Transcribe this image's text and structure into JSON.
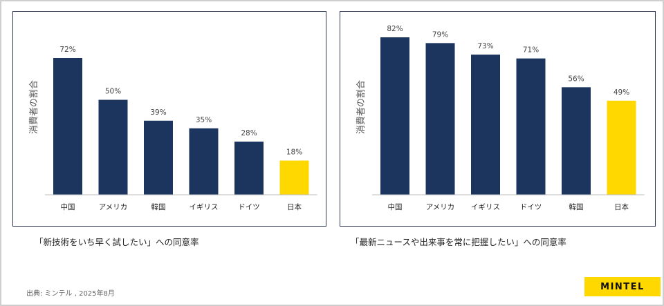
{
  "chart_data": [
    {
      "type": "bar",
      "ylabel": "消費者の割合",
      "categories": [
        "中国",
        "アメリカ",
        "韓国",
        "イギリス",
        "ドイツ",
        "日本"
      ],
      "values": [
        72,
        50,
        39,
        35,
        28,
        18
      ],
      "value_labels": [
        "72%",
        "50%",
        "39%",
        "35%",
        "28%",
        "18%"
      ],
      "ylim": [
        0,
        100
      ],
      "grid": false,
      "colors": [
        "#1c355e",
        "#1c355e",
        "#1c355e",
        "#1c355e",
        "#1c355e",
        "#ffd800"
      ]
    },
    {
      "type": "bar",
      "ylabel": "消費者の割合",
      "categories": [
        "中国",
        "アメリカ",
        "イギリス",
        "ドイツ",
        "韓国",
        "日本"
      ],
      "values": [
        82,
        79,
        73,
        71,
        56,
        49
      ],
      "value_labels": [
        "82%",
        "79%",
        "73%",
        "71%",
        "56%",
        "49%"
      ],
      "ylim": [
        0,
        100
      ],
      "grid": false,
      "colors": [
        "#1c355e",
        "#1c355e",
        "#1c355e",
        "#1c355e",
        "#1c355e",
        "#ffd800"
      ]
    }
  ],
  "captions": {
    "left": "「新技術をいち早く試したい」への同意率",
    "right": "「最新ニュースや出来事を常に把握したい」への同意率"
  },
  "source": "出典: ミンテル , 2025年8月",
  "logo": "MINTEL"
}
